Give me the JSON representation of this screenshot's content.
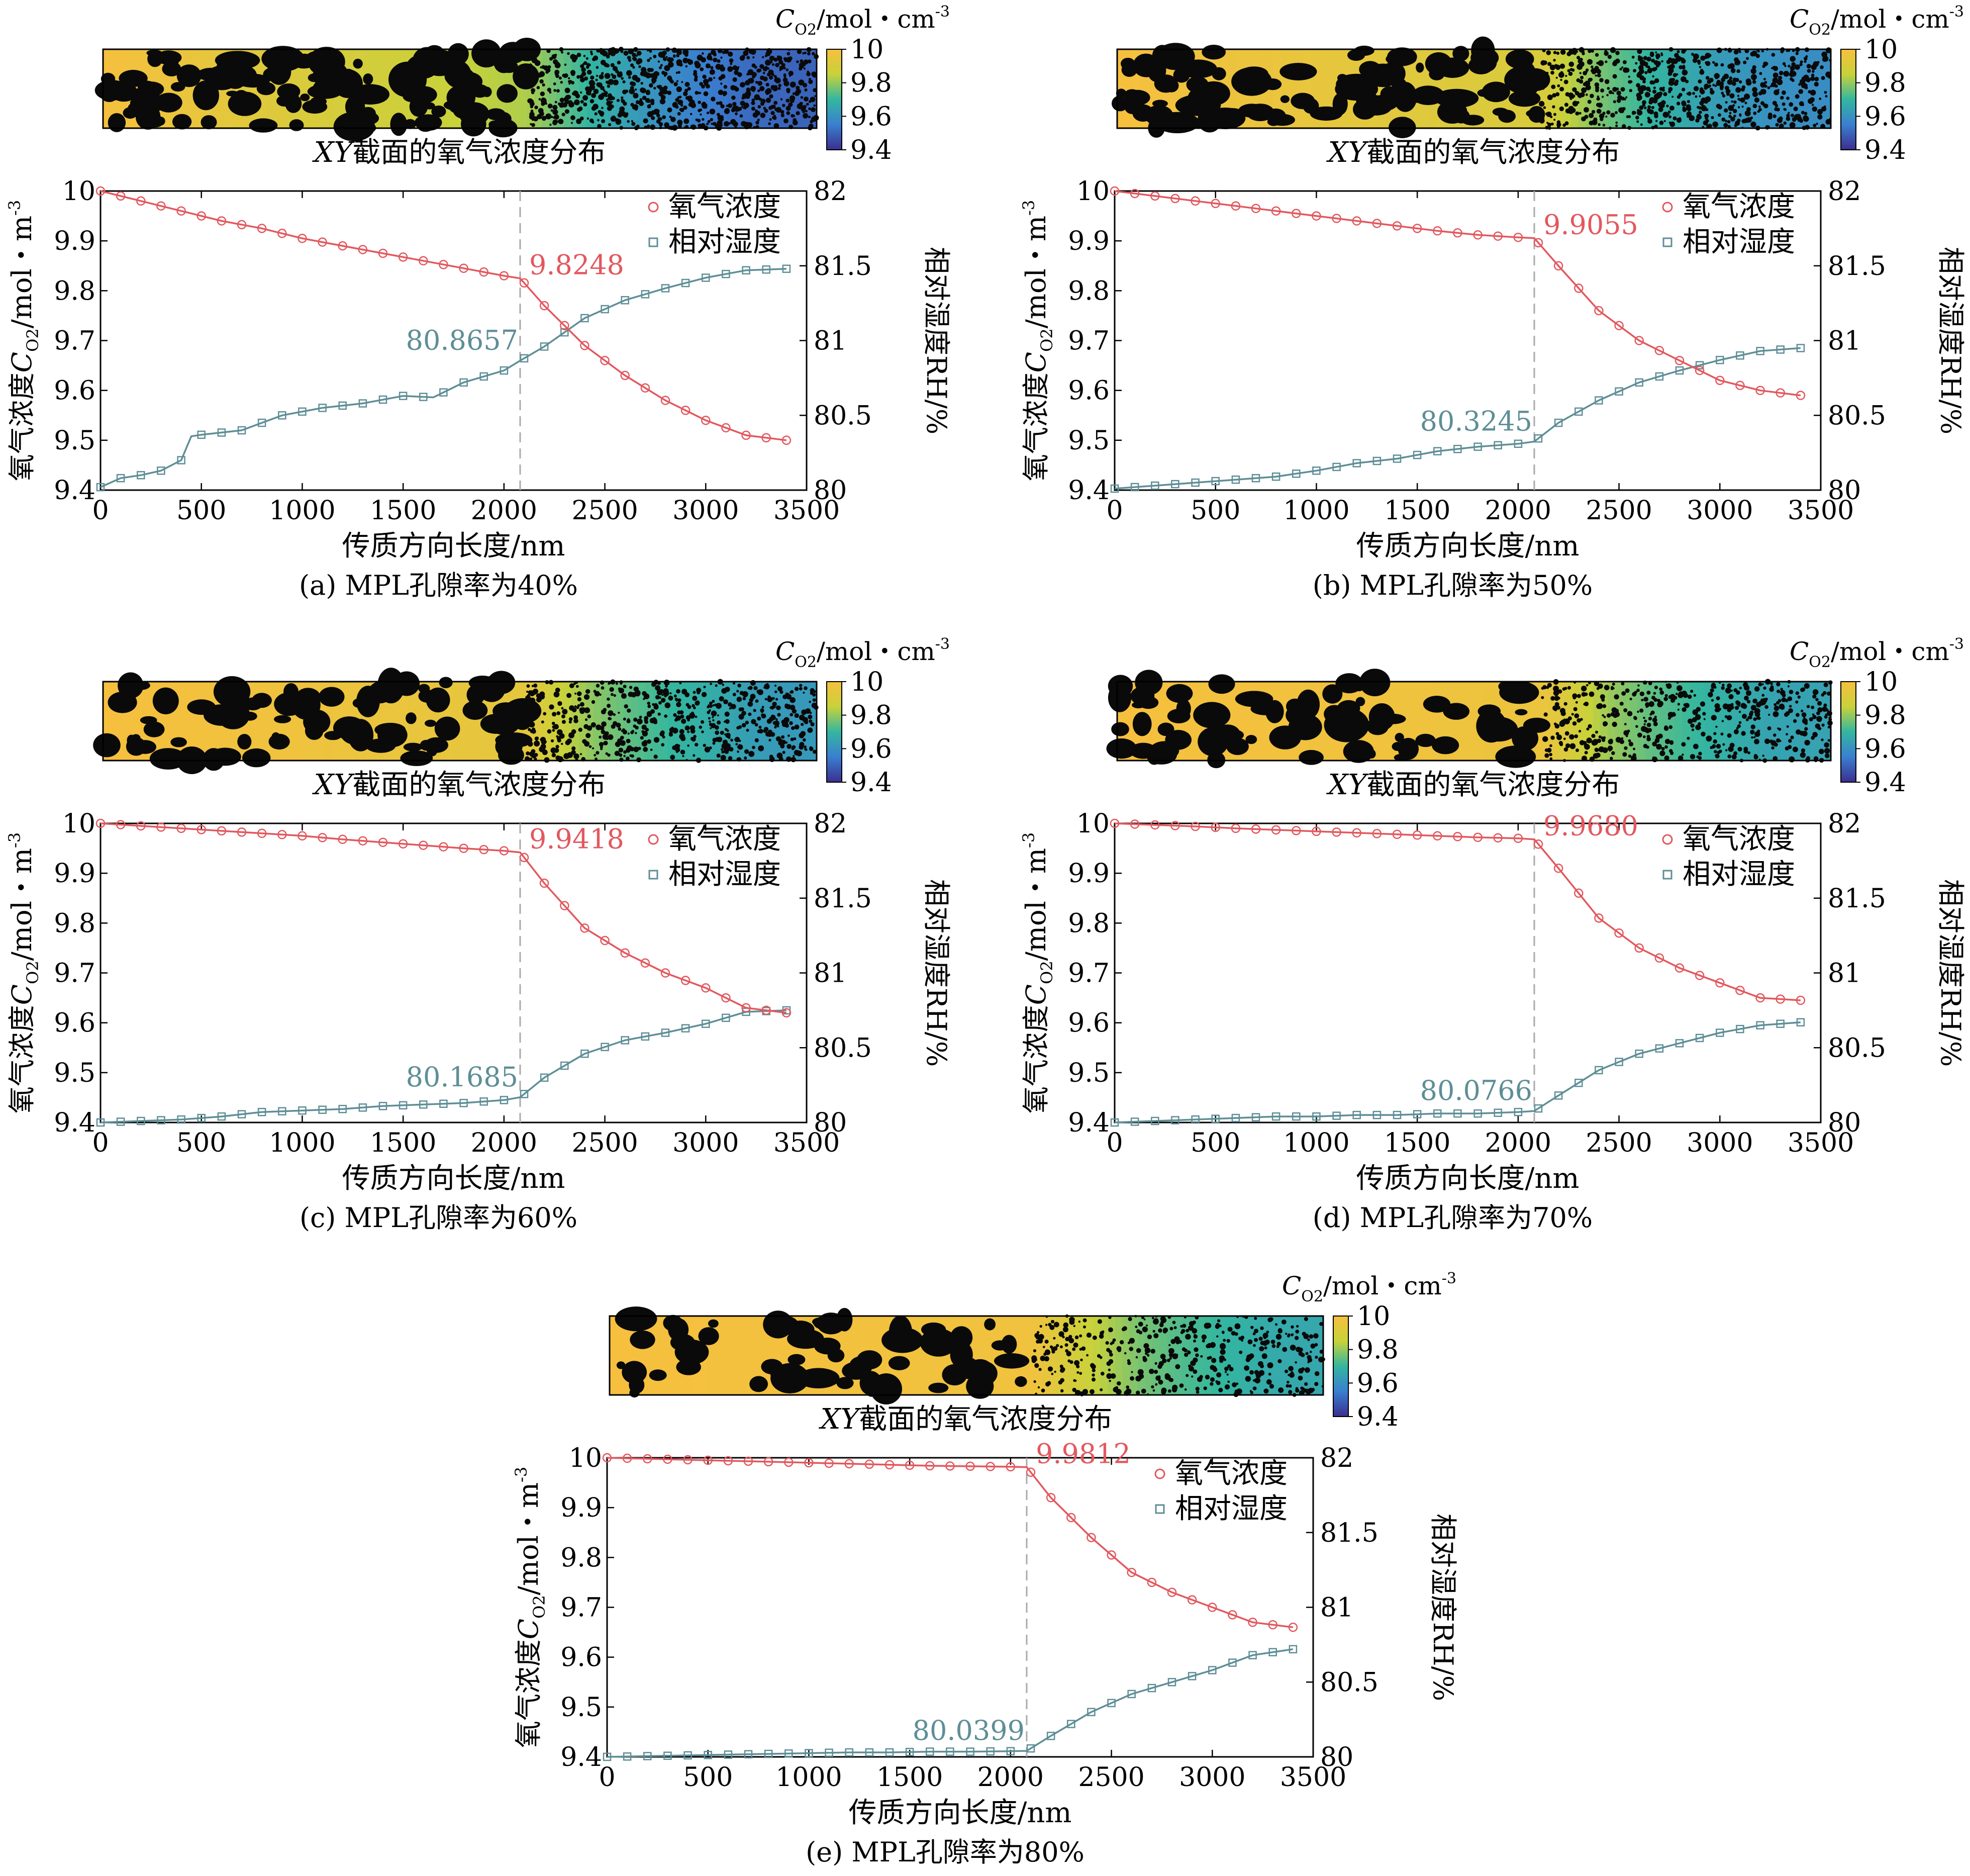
{
  "figure": {
    "shared": {
      "xlabel": "传质方向长度/nm",
      "ylabel_left_main": "氧气浓度",
      "ylabel_left_symbol": "C",
      "ylabel_left_sub": "O2",
      "ylabel_left_unit": "/mol・m",
      "ylabel_left_exp": "-3",
      "ylabel_right": "相对湿度RH/%",
      "heatmap_caption_italic": "XY",
      "heatmap_caption_rest": "截面的氧气浓度分布",
      "colorbar_title_symbol": "C",
      "colorbar_title_sub": "O2",
      "colorbar_title_unit": "/mol・cm",
      "colorbar_title_exp": "-3",
      "colorbar_ticks": [
        "10",
        "9.8",
        "9.6",
        "9.4"
      ],
      "legend_oxygen": "氧气浓度",
      "legend_humidity": "相对湿度",
      "x_ticks": [
        "0",
        "500",
        "1000",
        "1500",
        "2000",
        "2500",
        "3000",
        "3500"
      ],
      "y_left_ticks": [
        "10",
        "9.9",
        "9.8",
        "9.7",
        "9.6",
        "9.5",
        "9.4"
      ],
      "y_right_ticks": [
        "82",
        "81.5",
        "81",
        "80.5",
        "80"
      ],
      "colors": {
        "oxygen": "#e2585e",
        "humidity": "#5e8e96",
        "dashed": "#aaaaaa",
        "porous": "#0a0a0a"
      }
    }
  },
  "chart_data": [
    {
      "type": "line",
      "caption": "(a) MPL孔隙率为40%",
      "xlabel": "传质方向长度/nm",
      "ylabel": "氧气浓度C_O2/mol・m^-3",
      "y2label": "相对湿度RH/%",
      "xlim": [
        0,
        3500
      ],
      "ylim": [
        9.4,
        10
      ],
      "y2lim": [
        80,
        82
      ],
      "interface_x": 2080,
      "annotation_oxygen": "9.8248",
      "annotation_humidity": "80.8657",
      "series": [
        {
          "name": "氧气浓度",
          "axis": "left",
          "x": [
            0,
            200,
            400,
            600,
            800,
            1000,
            1200,
            1400,
            1600,
            1800,
            2000,
            2080,
            2200,
            2400,
            2600,
            2800,
            3000,
            3200,
            3400
          ],
          "values": [
            10.0,
            9.98,
            9.96,
            9.94,
            9.925,
            9.905,
            9.89,
            9.875,
            9.86,
            9.845,
            9.83,
            9.8248,
            9.77,
            9.69,
            9.63,
            9.58,
            9.54,
            9.51,
            9.5
          ]
        },
        {
          "name": "相对湿度",
          "axis": "right",
          "x": [
            0,
            100,
            200,
            300,
            400,
            450,
            500,
            700,
            900,
            1100,
            1300,
            1500,
            1650,
            1800,
            2000,
            2080,
            2200,
            2400,
            2600,
            2800,
            3000,
            3200,
            3400
          ],
          "values": [
            80.02,
            80.08,
            80.1,
            80.13,
            80.2,
            80.36,
            80.37,
            80.4,
            80.5,
            80.55,
            80.58,
            80.63,
            80.62,
            80.72,
            80.8,
            80.8657,
            80.96,
            81.15,
            81.27,
            81.35,
            81.42,
            81.47,
            81.48
          ]
        }
      ]
    },
    {
      "type": "line",
      "caption": "(b) MPL孔隙率为50%",
      "xlabel": "传质方向长度/nm",
      "ylabel": "氧气浓度C_O2/mol・m^-3",
      "y2label": "相对湿度RH/%",
      "xlim": [
        0,
        3500
      ],
      "ylim": [
        9.4,
        10
      ],
      "y2lim": [
        80,
        82
      ],
      "interface_x": 2080,
      "annotation_oxygen": "9.9055",
      "annotation_humidity": "80.3245",
      "series": [
        {
          "name": "氧气浓度",
          "axis": "left",
          "x": [
            0,
            200,
            400,
            600,
            800,
            1000,
            1200,
            1400,
            1600,
            1800,
            2000,
            2080,
            2200,
            2400,
            2600,
            2800,
            3000,
            3200,
            3400
          ],
          "values": [
            10.0,
            9.99,
            9.98,
            9.97,
            9.96,
            9.95,
            9.94,
            9.93,
            9.92,
            9.912,
            9.907,
            9.9055,
            9.85,
            9.76,
            9.7,
            9.66,
            9.62,
            9.6,
            9.59
          ]
        },
        {
          "name": "相对湿度",
          "axis": "right",
          "x": [
            0,
            200,
            400,
            600,
            800,
            1000,
            1200,
            1400,
            1600,
            1800,
            2000,
            2080,
            2200,
            2400,
            2600,
            2800,
            3000,
            3200,
            3400
          ],
          "values": [
            80.01,
            80.03,
            80.05,
            80.07,
            80.09,
            80.13,
            80.18,
            80.21,
            80.26,
            80.29,
            80.31,
            80.3245,
            80.45,
            80.6,
            80.72,
            80.8,
            80.87,
            80.93,
            80.95
          ]
        }
      ]
    },
    {
      "type": "line",
      "caption": "(c) MPL孔隙率为60%",
      "xlabel": "传质方向长度/nm",
      "ylabel": "氧气浓度C_O2/mol・m^-3",
      "y2label": "相对湿度RH/%",
      "xlim": [
        0,
        3500
      ],
      "ylim": [
        9.4,
        10
      ],
      "y2lim": [
        80,
        82
      ],
      "interface_x": 2080,
      "annotation_oxygen": "9.9418",
      "annotation_humidity": "80.1685",
      "series": [
        {
          "name": "氧气浓度",
          "axis": "left",
          "x": [
            0,
            200,
            400,
            600,
            800,
            1000,
            1200,
            1400,
            1600,
            1800,
            2000,
            2080,
            2200,
            2400,
            2600,
            2800,
            3000,
            3200,
            3400
          ],
          "values": [
            10.0,
            9.995,
            9.99,
            9.985,
            9.98,
            9.975,
            9.968,
            9.962,
            9.956,
            9.95,
            9.945,
            9.9418,
            9.88,
            9.79,
            9.74,
            9.7,
            9.67,
            9.63,
            9.62
          ]
        },
        {
          "name": "相对湿度",
          "axis": "right",
          "x": [
            0,
            200,
            400,
            600,
            800,
            1000,
            1200,
            1400,
            1600,
            1800,
            2000,
            2080,
            2200,
            2400,
            2600,
            2800,
            3000,
            3200,
            3400
          ],
          "values": [
            80.0,
            80.01,
            80.02,
            80.04,
            80.07,
            80.08,
            80.09,
            80.11,
            80.12,
            80.13,
            80.15,
            80.1685,
            80.3,
            80.46,
            80.55,
            80.6,
            80.66,
            80.74,
            80.75
          ]
        }
      ]
    },
    {
      "type": "line",
      "caption": "(d) MPL孔隙率为70%",
      "xlabel": "传质方向长度/nm",
      "ylabel": "氧气浓度C_O2/mol・m^-3",
      "y2label": "相对湿度RH/%",
      "xlim": [
        0,
        3500
      ],
      "ylim": [
        9.4,
        10
      ],
      "y2lim": [
        80,
        82
      ],
      "interface_x": 2080,
      "annotation_oxygen": "9.9680",
      "annotation_humidity": "80.0766",
      "series": [
        {
          "name": "氧气浓度",
          "axis": "left",
          "x": [
            0,
            200,
            400,
            600,
            800,
            1000,
            1200,
            1400,
            1600,
            1800,
            2000,
            2080,
            2200,
            2400,
            2600,
            2800,
            3000,
            3200,
            3400
          ],
          "values": [
            10.0,
            9.997,
            9.994,
            9.99,
            9.987,
            9.984,
            9.981,
            9.978,
            9.975,
            9.972,
            9.97,
            9.968,
            9.91,
            9.81,
            9.75,
            9.71,
            9.68,
            9.65,
            9.645
          ]
        },
        {
          "name": "相对湿度",
          "axis": "right",
          "x": [
            0,
            200,
            400,
            600,
            800,
            1000,
            1200,
            1400,
            1600,
            1800,
            2000,
            2080,
            2200,
            2400,
            2600,
            2800,
            3000,
            3200,
            3400
          ],
          "values": [
            80.0,
            80.01,
            80.02,
            80.03,
            80.04,
            80.04,
            80.05,
            80.05,
            80.06,
            80.06,
            80.07,
            80.0766,
            80.18,
            80.35,
            80.46,
            80.53,
            80.6,
            80.65,
            80.67
          ]
        }
      ]
    },
    {
      "type": "line",
      "caption": "(e) MPL孔隙率为80%",
      "xlabel": "传质方向长度/nm",
      "ylabel": "氧气浓度C_O2/mol・m^-3",
      "y2label": "相对湿度RH/%",
      "xlim": [
        0,
        3500
      ],
      "ylim": [
        9.4,
        10
      ],
      "y2lim": [
        80,
        82
      ],
      "interface_x": 2080,
      "annotation_oxygen": "9.9812",
      "annotation_humidity": "80.0399",
      "series": [
        {
          "name": "氧气浓度",
          "axis": "left",
          "x": [
            0,
            200,
            400,
            600,
            800,
            1000,
            1200,
            1400,
            1600,
            1800,
            2000,
            2080,
            2200,
            2400,
            2600,
            2800,
            3000,
            3200,
            3400
          ],
          "values": [
            10.0,
            9.998,
            9.996,
            9.994,
            9.992,
            9.99,
            9.988,
            9.986,
            9.984,
            9.983,
            9.982,
            9.9812,
            9.92,
            9.84,
            9.77,
            9.73,
            9.7,
            9.67,
            9.66
          ]
        },
        {
          "name": "相对湿度",
          "axis": "right",
          "x": [
            0,
            200,
            400,
            600,
            800,
            1000,
            1200,
            1400,
            1600,
            1800,
            2000,
            2080,
            2200,
            2400,
            2600,
            2800,
            3000,
            3200,
            3400
          ],
          "values": [
            80.0,
            80.005,
            80.01,
            80.015,
            80.02,
            80.025,
            80.03,
            80.03,
            80.035,
            80.035,
            80.038,
            80.0399,
            80.14,
            80.3,
            80.42,
            80.5,
            80.58,
            80.68,
            80.72
          ]
        }
      ]
    }
  ]
}
